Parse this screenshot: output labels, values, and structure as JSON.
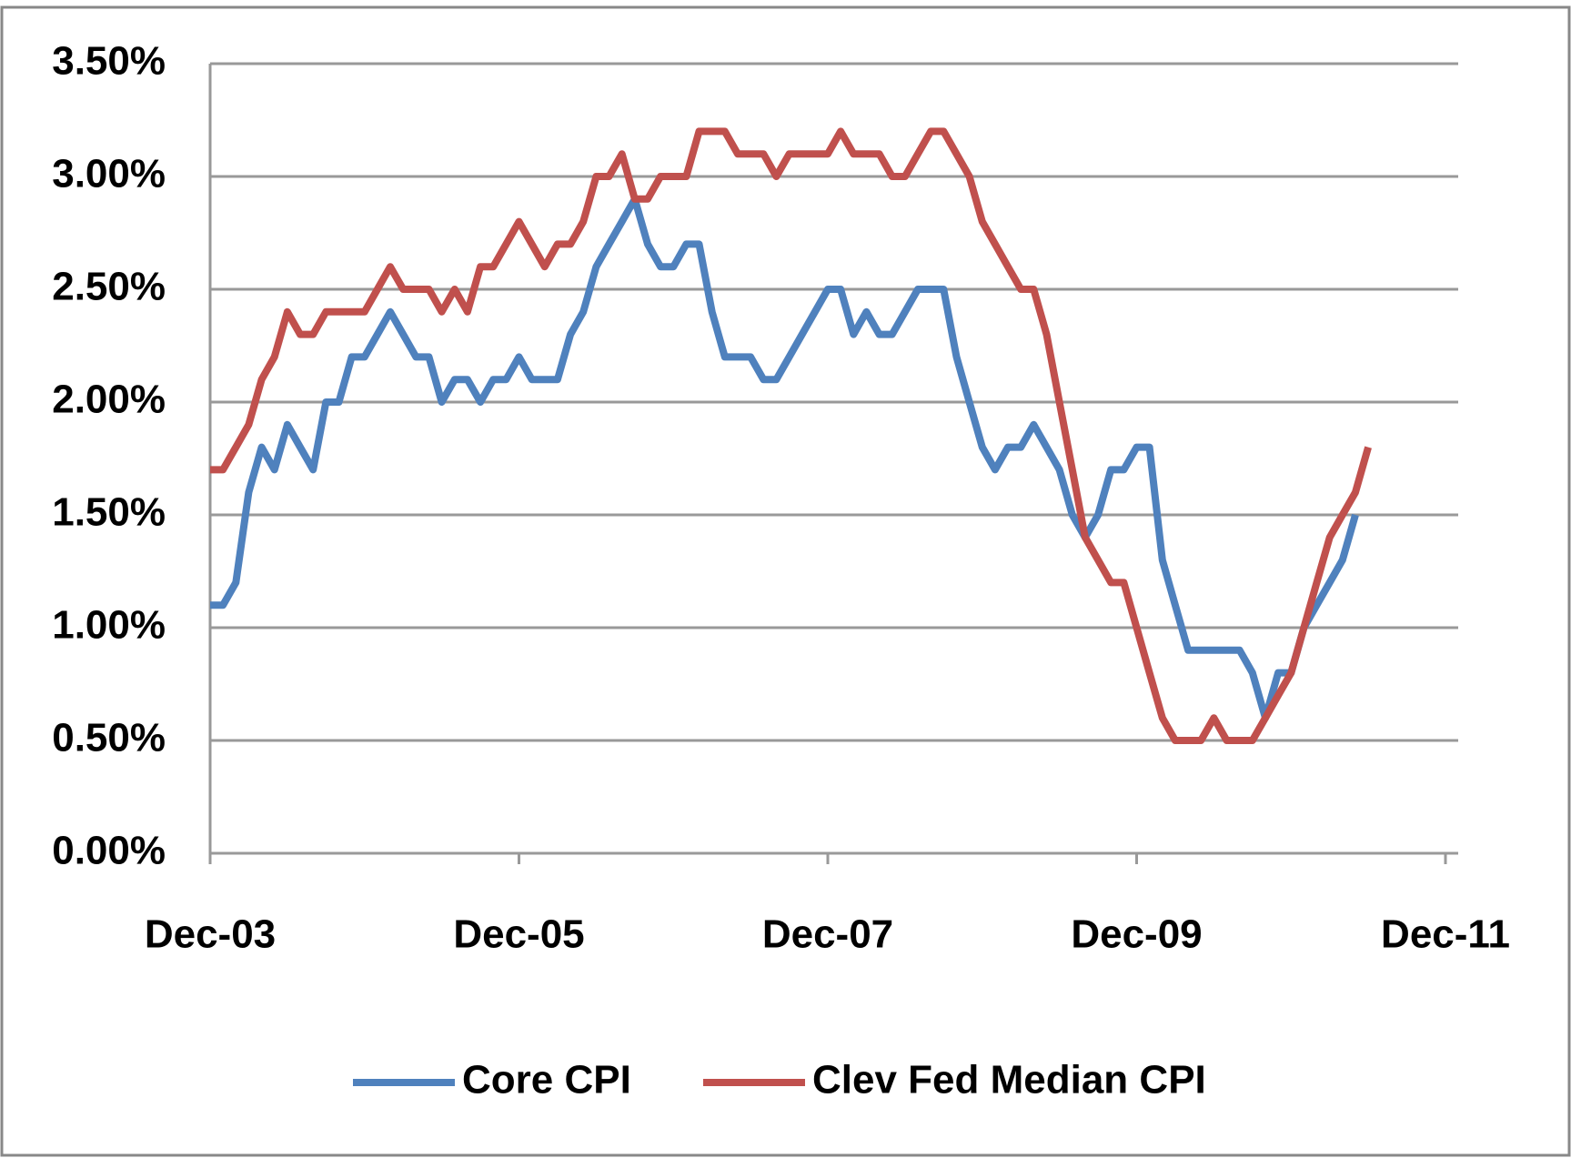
{
  "chart_data": {
    "type": "line",
    "categories": [
      "Dec-03",
      null,
      null,
      null,
      null,
      null,
      null,
      null,
      null,
      null,
      null,
      null,
      null,
      null,
      null,
      null,
      null,
      null,
      null,
      null,
      null,
      null,
      null,
      null,
      "Dec-05",
      null,
      null,
      null,
      null,
      null,
      null,
      null,
      null,
      null,
      null,
      null,
      null,
      null,
      null,
      null,
      null,
      null,
      null,
      null,
      null,
      null,
      null,
      null,
      "Dec-07",
      null,
      null,
      null,
      null,
      null,
      null,
      null,
      null,
      null,
      null,
      null,
      null,
      null,
      null,
      null,
      null,
      null,
      null,
      null,
      null,
      null,
      null,
      null,
      "Dec-09",
      null,
      null,
      null,
      null,
      null,
      null,
      null,
      null,
      null,
      null,
      null,
      null,
      null,
      null,
      null,
      null,
      null,
      null,
      null,
      null,
      null,
      null,
      null,
      "Dec-11"
    ],
    "series": [
      {
        "name": "Core CPI",
        "color": "#4f81bd",
        "values": [
          1.1,
          1.1,
          1.2,
          1.6,
          1.8,
          1.7,
          1.9,
          1.8,
          1.7,
          2.0,
          2.0,
          2.2,
          2.2,
          2.3,
          2.4,
          2.3,
          2.2,
          2.2,
          2.0,
          2.1,
          2.1,
          2.0,
          2.1,
          2.1,
          2.2,
          2.1,
          2.1,
          2.1,
          2.3,
          2.4,
          2.6,
          2.7,
          2.8,
          2.9,
          2.7,
          2.6,
          2.6,
          2.7,
          2.7,
          2.4,
          2.2,
          2.2,
          2.2,
          2.1,
          2.1,
          2.2,
          2.3,
          2.4,
          2.5,
          2.5,
          2.3,
          2.4,
          2.3,
          2.3,
          2.4,
          2.5,
          2.5,
          2.5,
          2.2,
          2.0,
          1.8,
          1.7,
          1.8,
          1.8,
          1.9,
          1.8,
          1.7,
          1.5,
          1.4,
          1.5,
          1.7,
          1.7,
          1.8,
          1.8,
          1.3,
          1.1,
          0.9,
          0.9,
          0.9,
          0.9,
          0.9,
          0.8,
          0.6,
          0.8,
          0.8,
          1.0,
          1.1,
          1.2,
          1.3,
          1.5,
          null,
          null,
          null,
          null,
          null,
          null,
          null
        ]
      },
      {
        "name": "Clev Fed Median CPI",
        "color": "#c0504d",
        "values": [
          1.7,
          1.7,
          1.8,
          1.9,
          2.1,
          2.2,
          2.4,
          2.3,
          2.3,
          2.4,
          2.4,
          2.4,
          2.4,
          2.5,
          2.6,
          2.5,
          2.5,
          2.5,
          2.4,
          2.5,
          2.4,
          2.6,
          2.6,
          2.7,
          2.8,
          2.7,
          2.6,
          2.7,
          2.7,
          2.8,
          3.0,
          3.0,
          3.1,
          2.9,
          2.9,
          3.0,
          3.0,
          3.0,
          3.2,
          3.2,
          3.2,
          3.1,
          3.1,
          3.1,
          3.0,
          3.1,
          3.1,
          3.1,
          3.1,
          3.2,
          3.1,
          3.1,
          3.1,
          3.0,
          3.0,
          3.1,
          3.2,
          3.2,
          3.1,
          3.0,
          2.8,
          2.7,
          2.6,
          2.5,
          2.5,
          2.3,
          2.0,
          1.7,
          1.4,
          1.3,
          1.2,
          1.2,
          1.0,
          0.8,
          0.6,
          0.5,
          0.5,
          0.5,
          0.6,
          0.5,
          0.5,
          0.5,
          0.6,
          0.7,
          0.8,
          1.0,
          1.2,
          1.4,
          1.5,
          1.6,
          1.8,
          null,
          null,
          null,
          null,
          null,
          null
        ]
      }
    ],
    "ylim": [
      0,
      3.5
    ],
    "yticks": [
      {
        "value": 0,
        "label": "0.00%"
      },
      {
        "value": 0.5,
        "label": "0.50%"
      },
      {
        "value": 1,
        "label": "1.00%"
      },
      {
        "value": 1.5,
        "label": "1.50%"
      },
      {
        "value": 2,
        "label": "2.00%"
      },
      {
        "value": 2.5,
        "label": "2.50%"
      },
      {
        "value": 3,
        "label": "3.00%"
      },
      {
        "value": 3.5,
        "label": "3.50%"
      }
    ],
    "grid": true,
    "legend": "bottom"
  }
}
